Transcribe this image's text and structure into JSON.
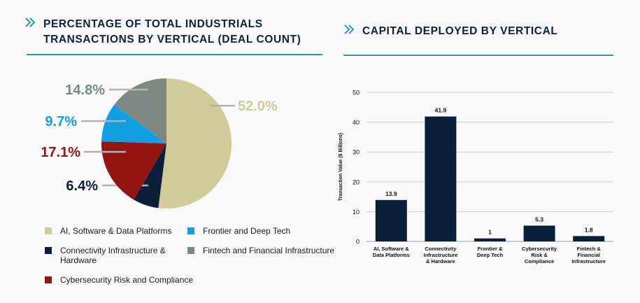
{
  "left_panel": {
    "title_line1": "PERCENTAGE OF TOTAL INDUSTRIALS",
    "title_line2": "TRANSACTIONS BY VERTICAL (DEAL COUNT)"
  },
  "right_panel": {
    "title": "CAPITAL DEPLOYED BY VERTICAL"
  },
  "legend": [
    {
      "label": "AI, Software & Data Platforms",
      "color": "#d1cb9a"
    },
    {
      "label": "Frontier and Deep Tech",
      "color": "#129ee2"
    },
    {
      "label": "Connectivity Infrastructure & Hardware",
      "color": "#0c1f3a"
    },
    {
      "label": "Fintech and Financial Infrastructure",
      "color": "#7e8780"
    },
    {
      "label": "Cybersecurity Risk and Compliance",
      "color": "#931410"
    }
  ],
  "chart_data": [
    {
      "type": "pie",
      "title": "PERCENTAGE OF TOTAL INDUSTRIALS TRANSACTIONS BY VERTICAL (DEAL COUNT)",
      "slices": [
        {
          "name": "AI, Software & Data Platforms",
          "value": 52.0,
          "label": "52.0%",
          "color": "#d1cb9a"
        },
        {
          "name": "Connectivity Infrastructure & Hardware",
          "value": 6.4,
          "label": "6.4%",
          "color": "#0c1f3a"
        },
        {
          "name": "Cybersecurity Risk and Compliance",
          "value": 17.1,
          "label": "17.1%",
          "color": "#931410"
        },
        {
          "name": "Frontier and Deep Tech",
          "value": 9.7,
          "label": "9.7%",
          "color": "#129ee2"
        },
        {
          "name": "Fintech and Financial Infrastructure",
          "value": 14.8,
          "label": "14.8%",
          "color": "#7e8780"
        }
      ]
    },
    {
      "type": "bar",
      "title": "CAPITAL DEPLOYED BY VERTICAL",
      "categories": [
        [
          "AI, Software &",
          "Data Platforms"
        ],
        [
          "Connectivity",
          "Infrastructure",
          "& Hardware"
        ],
        [
          "Frontier &",
          "Deep Tech"
        ],
        [
          "Cybersecurity",
          "Risk &",
          "Compliance"
        ],
        [
          "Fintech &",
          "Financial",
          "Infrastructure"
        ]
      ],
      "values": [
        13.9,
        41.9,
        1,
        5.3,
        1.8
      ],
      "value_labels": [
        "13.9",
        "41.9",
        "1",
        "5.3",
        "1.8"
      ],
      "ylabel": "Transaction Value ($ Billions)",
      "ylim": [
        0,
        50
      ],
      "yticks": [
        0,
        10,
        20,
        30,
        40,
        50
      ],
      "bar_color": "#0c1f3a",
      "grid": true
    }
  ]
}
